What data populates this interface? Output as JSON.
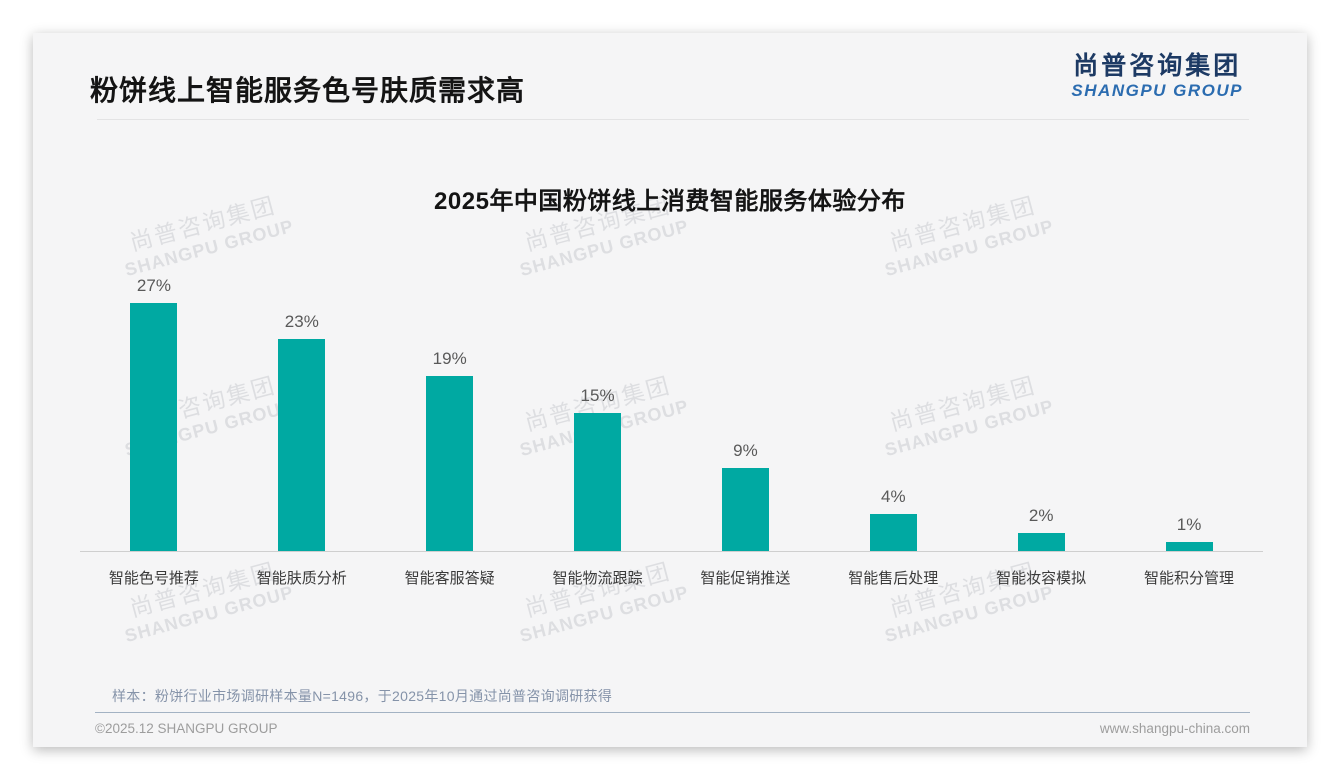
{
  "header": {
    "title": "粉饼线上智能服务色号肤质需求高"
  },
  "logo": {
    "cn": "尚普咨询集团",
    "en": "SHANGPU GROUP"
  },
  "watermark": {
    "cn": "尚普咨询集团",
    "en": "SHANGPU GROUP"
  },
  "chart_data": {
    "type": "bar",
    "title": "2025年中国粉饼线上消费智能服务体验分布",
    "categories": [
      "智能色号推荐",
      "智能肤质分析",
      "智能客服答疑",
      "智能物流跟踪",
      "智能促销推送",
      "智能售后处理",
      "智能妆容模拟",
      "智能积分管理"
    ],
    "values": [
      27,
      23,
      19,
      15,
      9,
      4,
      2,
      1
    ],
    "data_labels": [
      "27%",
      "23%",
      "19%",
      "15%",
      "9%",
      "4%",
      "2%",
      "1%"
    ],
    "unit": "%",
    "ylim": [
      0,
      30
    ],
    "bar_color": "#00A9A2",
    "grid": false,
    "legend": "none",
    "xlabel": "",
    "ylabel": ""
  },
  "footnote": "样本：粉饼行业市场调研样本量N=1496，于2025年10月通过尚普咨询调研获得",
  "footer": {
    "left": "©2025.12 SHANGPU GROUP",
    "right": "www.shangpu-china.com"
  }
}
